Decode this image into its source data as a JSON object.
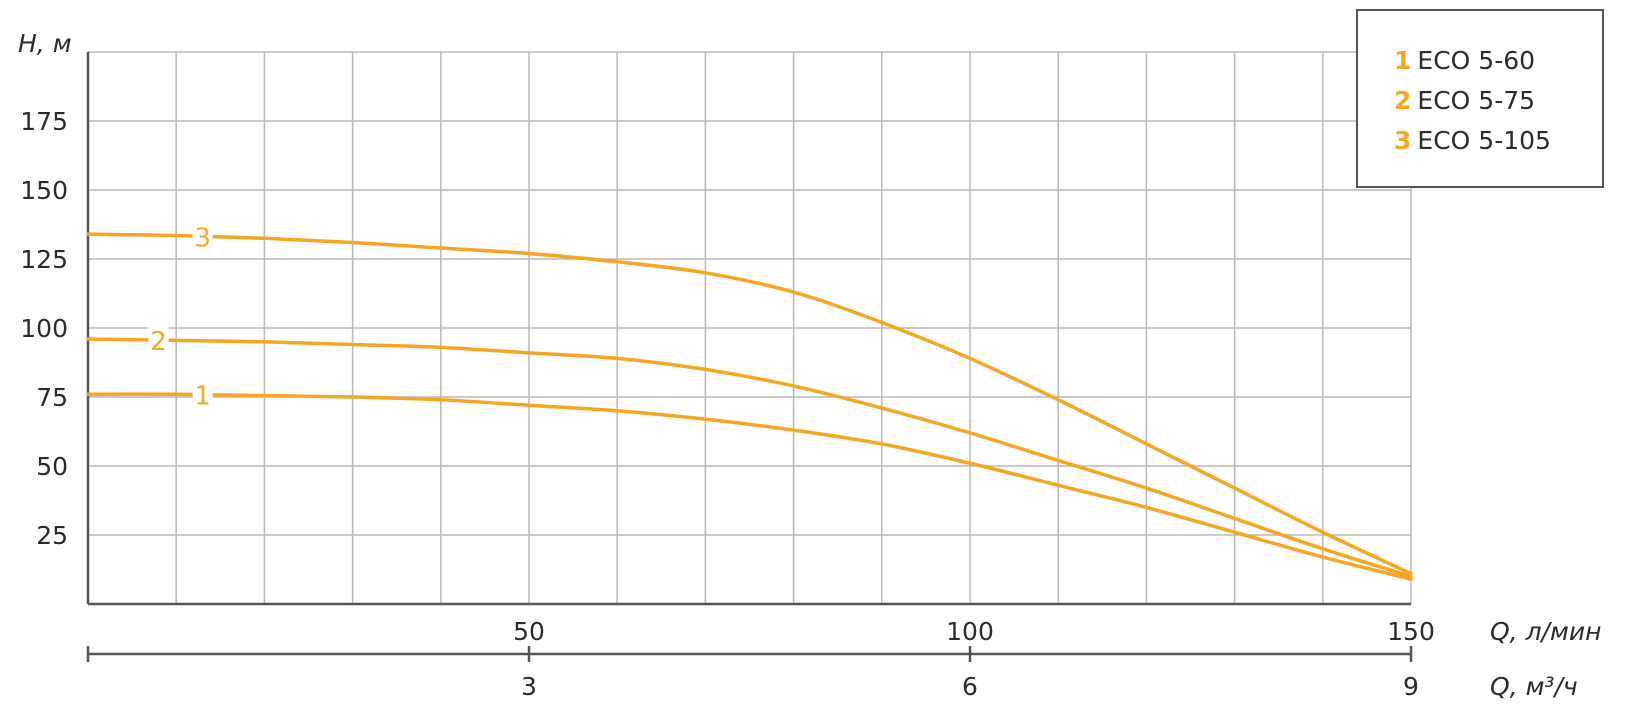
{
  "colors": {
    "curve": "#f5a623",
    "grid": "#b8b8b8",
    "axis": "#555555",
    "text": "#2b2b2b"
  },
  "legend": {
    "items": [
      {
        "num": "1",
        "label": "ECO 5-60"
      },
      {
        "num": "2",
        "label": "ECO 5-75"
      },
      {
        "num": "3",
        "label": "ECO 5-105"
      }
    ]
  },
  "chart_data": {
    "type": "line",
    "ylabel": "H, м",
    "xlabel": "Q, л/мин",
    "xlabel2": "Q, м³/ч",
    "xlim": [
      0,
      150
    ],
    "ylim": [
      0,
      200
    ],
    "yticks": [
      25,
      50,
      75,
      100,
      125,
      150,
      175
    ],
    "xticks": [
      50,
      100,
      150
    ],
    "xticks2": [
      {
        "value": 50,
        "label": "3"
      },
      {
        "value": 100,
        "label": "6"
      },
      {
        "value": 150,
        "label": "9"
      }
    ],
    "grid": true,
    "legend_position": "top-right",
    "series": [
      {
        "name": "1",
        "label_at": 13,
        "points": [
          [
            0,
            76
          ],
          [
            10,
            76
          ],
          [
            20,
            75.5
          ],
          [
            30,
            75
          ],
          [
            40,
            74
          ],
          [
            50,
            72
          ],
          [
            60,
            70
          ],
          [
            70,
            67
          ],
          [
            80,
            63
          ],
          [
            90,
            58
          ],
          [
            100,
            51
          ],
          [
            110,
            43
          ],
          [
            120,
            35
          ],
          [
            130,
            26
          ],
          [
            140,
            17
          ],
          [
            150,
            9
          ]
        ]
      },
      {
        "name": "2",
        "label_at": 8,
        "points": [
          [
            0,
            96
          ],
          [
            10,
            95.5
          ],
          [
            20,
            95
          ],
          [
            30,
            94
          ],
          [
            40,
            93
          ],
          [
            50,
            91
          ],
          [
            60,
            89
          ],
          [
            70,
            85
          ],
          [
            80,
            79
          ],
          [
            90,
            71
          ],
          [
            100,
            62
          ],
          [
            110,
            52
          ],
          [
            120,
            42
          ],
          [
            130,
            31
          ],
          [
            140,
            20
          ],
          [
            150,
            10
          ]
        ]
      },
      {
        "name": "3",
        "label_at": 13,
        "points": [
          [
            0,
            134
          ],
          [
            10,
            133.5
          ],
          [
            20,
            132.5
          ],
          [
            30,
            131
          ],
          [
            40,
            129
          ],
          [
            50,
            127
          ],
          [
            60,
            124
          ],
          [
            70,
            120
          ],
          [
            80,
            113
          ],
          [
            90,
            102
          ],
          [
            100,
            89
          ],
          [
            110,
            74
          ],
          [
            120,
            58
          ],
          [
            130,
            42
          ],
          [
            140,
            26
          ],
          [
            150,
            11
          ]
        ]
      }
    ]
  }
}
